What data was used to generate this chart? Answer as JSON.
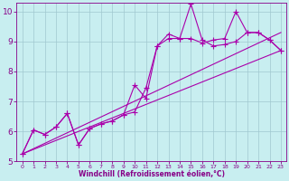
{
  "xlabel": "Windchill (Refroidissement éolien,°C)",
  "xlim": [
    -0.5,
    23.5
  ],
  "ylim": [
    5,
    10.3
  ],
  "xticks": [
    0,
    1,
    2,
    3,
    4,
    5,
    6,
    7,
    8,
    9,
    10,
    11,
    12,
    13,
    14,
    15,
    16,
    17,
    18,
    19,
    20,
    21,
    22,
    23
  ],
  "yticks": [
    5,
    6,
    7,
    8,
    9,
    10
  ],
  "bg_color": "#c8eef0",
  "grid_color": "#a0c8d0",
  "line_color": "#aa00aa",
  "line1_x": [
    0,
    1,
    2,
    3,
    4,
    5,
    6,
    7,
    8,
    9,
    10,
    11,
    12,
    13,
    14,
    15,
    16,
    17,
    18,
    19,
    20,
    21,
    22,
    23
  ],
  "line1_y": [
    5.25,
    6.05,
    5.9,
    6.15,
    6.6,
    5.55,
    6.1,
    6.25,
    6.35,
    6.55,
    6.65,
    7.45,
    8.85,
    9.25,
    9.1,
    10.25,
    9.05,
    8.85,
    8.9,
    9.0,
    9.3,
    9.3,
    9.05,
    8.7
  ],
  "line2_x": [
    0,
    1,
    2,
    3,
    4,
    5,
    6,
    7,
    8,
    9,
    10,
    11,
    12,
    13,
    14,
    15,
    16,
    17,
    18,
    19,
    20,
    21,
    22,
    23
  ],
  "line2_y": [
    5.25,
    6.05,
    5.9,
    6.15,
    6.6,
    5.55,
    6.1,
    6.25,
    6.35,
    6.55,
    7.55,
    7.1,
    8.85,
    9.1,
    9.1,
    9.1,
    8.95,
    9.05,
    9.1,
    10.0,
    9.3,
    9.3,
    9.05,
    8.7
  ],
  "line3_x": [
    0,
    23
  ],
  "line3_y": [
    5.25,
    9.3
  ],
  "line4_x": [
    0,
    23
  ],
  "line4_y": [
    5.25,
    8.7
  ],
  "marker": "+",
  "markersize": 4,
  "linewidth": 0.8,
  "font_color": "#880088",
  "tick_color": "#880088"
}
